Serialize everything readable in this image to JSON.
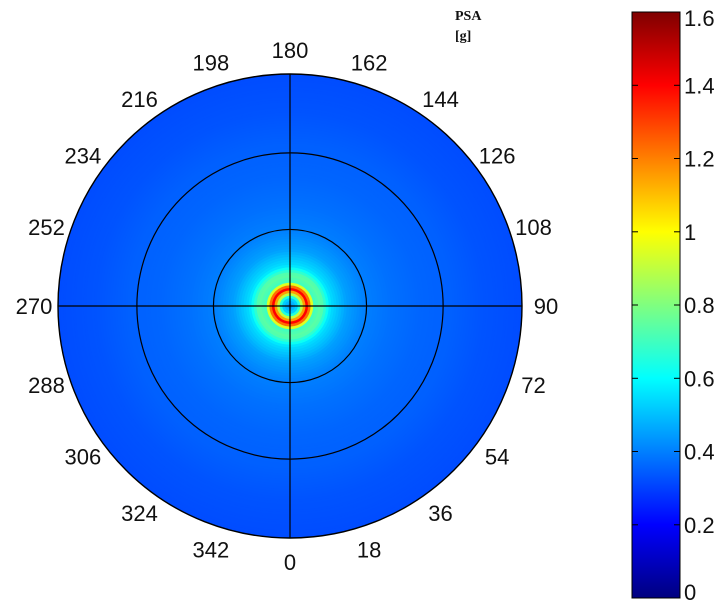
{
  "chart_data": {
    "type": "heatmap",
    "projection": "polar",
    "title": "PSA",
    "unit": "[g]",
    "angle_ticks": [
      "0",
      "18",
      "36",
      "54",
      "72",
      "90",
      "108",
      "126",
      "144",
      "162",
      "180",
      "198",
      "216",
      "234",
      "252",
      "270",
      "288",
      "306",
      "324",
      "342"
    ],
    "angle_values_deg": [
      0,
      18,
      36,
      54,
      72,
      90,
      108,
      126,
      144,
      162,
      180,
      198,
      216,
      234,
      252,
      270,
      288,
      306,
      324,
      342
    ],
    "radial_ticks_fraction": [
      0.33,
      0.66,
      1.0
    ],
    "radial_spokes_deg": [
      0,
      90,
      180,
      270
    ],
    "colorbar": {
      "colormap": "jet",
      "min": 0,
      "max": 1.6,
      "ticks": [
        "0",
        "0.2",
        "0.4",
        "0.6",
        "0.8",
        "1",
        "1.2",
        "1.4",
        "1.6"
      ],
      "tick_values": [
        0,
        0.2,
        0.4,
        0.6,
        0.8,
        1.0,
        1.2,
        1.4,
        1.6
      ]
    },
    "radial_profile": {
      "r_fraction": [
        0.0,
        0.04,
        0.08,
        0.11,
        0.14,
        0.18,
        0.25,
        0.33,
        0.42,
        0.55,
        0.7,
        0.85,
        1.0
      ],
      "psa_g": [
        0.4,
        0.55,
        1.45,
        0.7,
        0.75,
        0.55,
        0.45,
        0.4,
        0.38,
        0.36,
        0.35,
        0.33,
        0.32
      ]
    },
    "peak_value_g": 1.5,
    "background_value_g": 0.35,
    "grid": true
  }
}
